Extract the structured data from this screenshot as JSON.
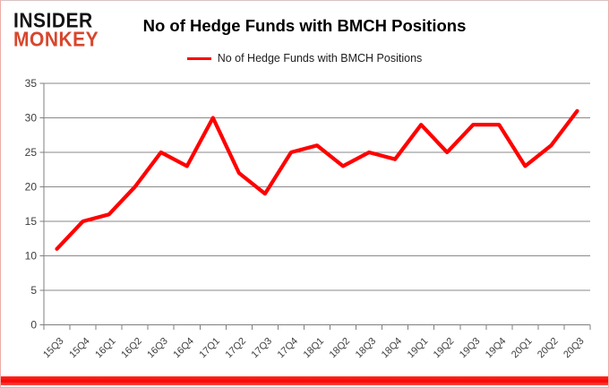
{
  "header": {
    "logo": {
      "line1": "INSIDER",
      "line2": "MONKEY"
    },
    "title": "No of Hedge Funds with BMCH Positions",
    "legend": {
      "label": "No of Hedge Funds with BMCH Positions",
      "color": "#ff0000"
    }
  },
  "chart_data": {
    "type": "line",
    "title": "No of Hedge Funds with BMCH Positions",
    "categories": [
      "15Q3",
      "15Q4",
      "16Q1",
      "16Q2",
      "16Q3",
      "16Q4",
      "17Q1",
      "17Q2",
      "17Q3",
      "17Q4",
      "18Q1",
      "18Q2",
      "18Q3",
      "18Q4",
      "19Q1",
      "19Q2",
      "19Q3",
      "19Q4",
      "20Q1",
      "20Q2",
      "20Q3"
    ],
    "series": [
      {
        "name": "No of Hedge Funds with BMCH Positions",
        "color": "#ff0000",
        "values": [
          11,
          15,
          16,
          20,
          25,
          23,
          30,
          22,
          19,
          25,
          26,
          23,
          25,
          24,
          29,
          25,
          29,
          29,
          23,
          26,
          31
        ]
      }
    ],
    "xlabel": "",
    "ylabel": "",
    "ylim": [
      0,
      35
    ],
    "yticks": [
      0,
      5,
      10,
      15,
      20,
      25,
      30,
      35
    ],
    "grid": true,
    "legend_position": "top"
  },
  "colors": {
    "line": "#ff0000",
    "logo_black": "#141414",
    "logo_red": "#d8462c",
    "grid": "#8a8a8a",
    "axis": "#7f7f7f",
    "axis_text": "#3d3d3d",
    "border_pink": "#edaba7",
    "bottom_bar": "#f60505"
  }
}
